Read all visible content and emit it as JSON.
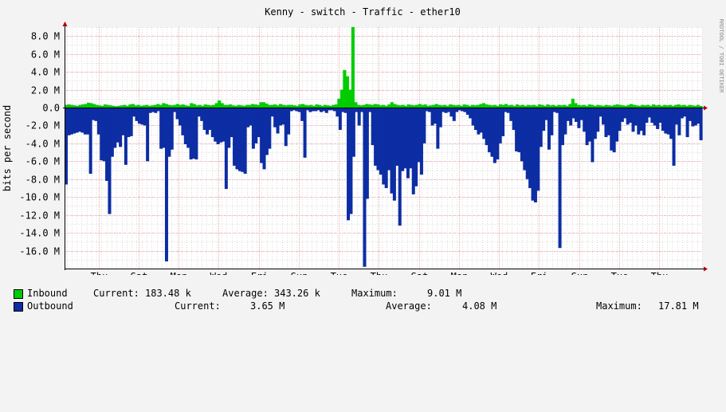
{
  "chart_data": {
    "type": "area",
    "title": "Kenny - switch - Traffic - ether10",
    "ylabel": "bits per second",
    "watermark": "RRDTOOL / TOBI OETIKER",
    "ylim": [
      -18000000,
      9000000
    ],
    "y_ticks": [
      {
        "value": 8000000,
        "label": "8.0 M"
      },
      {
        "value": 6000000,
        "label": "6.0 M"
      },
      {
        "value": 4000000,
        "label": "4.0 M"
      },
      {
        "value": 2000000,
        "label": "2.0 M"
      },
      {
        "value": 0,
        "label": "0.0"
      },
      {
        "value": -2000000,
        "label": "-2.0 M"
      },
      {
        "value": -4000000,
        "label": "-4.0 M"
      },
      {
        "value": -6000000,
        "label": "-6.0 M"
      },
      {
        "value": -8000000,
        "label": "-8.0 M"
      },
      {
        "value": -10000000,
        "label": "-10.0 M"
      },
      {
        "value": -12000000,
        "label": "-12.0 M"
      },
      {
        "value": -14000000,
        "label": "-14.0 M"
      },
      {
        "value": -16000000,
        "label": "-16.0 M"
      }
    ],
    "x_ticks": [
      "Thu",
      "Sat",
      "Mon",
      "Wed",
      "Fri",
      "Sun",
      "Tue",
      "Thu",
      "Sat",
      "Mon",
      "Wed",
      "Fri",
      "Sun",
      "Tue",
      "Thu"
    ],
    "x_days": 17.5,
    "x_tick_days": [
      0.85,
      2.85,
      4.85,
      6.85,
      8.85,
      10.85,
      12.85,
      14.85,
      16.85,
      18.85,
      20.85,
      22.85,
      24.85,
      26.85,
      28.85
    ],
    "x_range_days": [
      -0.85,
      31.0
    ],
    "grid": true,
    "legend_position": "bottom",
    "series": [
      {
        "name": "Inbound",
        "color": "#00cc00",
        "legend_label": "Inbound",
        "stats": {
          "current_label": "Current:",
          "current": "183.48 k",
          "average_label": "Average:",
          "average": "343.26 k",
          "maximum_label": "Maximum:",
          "maximum": "9.01 M"
        },
        "values": [
          0.3,
          0.35,
          0.3,
          0.25,
          0.2,
          0.3,
          0.35,
          0.4,
          0.55,
          0.5,
          0.4,
          0.3,
          0.25,
          0.2,
          0.35,
          0.3,
          0.25,
          0.2,
          0.15,
          0.2,
          0.25,
          0.3,
          0.2,
          0.35,
          0.4,
          0.25,
          0.3,
          0.2,
          0.25,
          0.3,
          0.2,
          0.25,
          0.3,
          0.4,
          0.3,
          0.5,
          0.4,
          0.3,
          0.25,
          0.3,
          0.4,
          0.3,
          0.35,
          0.25,
          0.2,
          0.5,
          0.4,
          0.25,
          0.3,
          0.2,
          0.35,
          0.3,
          0.25,
          0.3,
          0.5,
          0.8,
          0.5,
          0.3,
          0.3,
          0.35,
          0.25,
          0.2,
          0.3,
          0.25,
          0.2,
          0.3,
          0.3,
          0.4,
          0.35,
          0.3,
          0.6,
          0.6,
          0.45,
          0.3,
          0.3,
          0.35,
          0.25,
          0.4,
          0.3,
          0.25,
          0.3,
          0.3,
          0.25,
          0.2,
          0.35,
          0.4,
          0.3,
          0.25,
          0.3,
          0.2,
          0.35,
          0.3,
          0.2,
          0.3,
          0.25,
          0.2,
          0.3,
          0.35,
          1.0,
          2.0,
          4.2,
          3.5,
          2.0,
          9.01,
          0.6,
          0.3,
          0.25,
          0.3,
          0.4,
          0.35,
          0.3,
          0.4,
          0.35,
          0.25,
          0.3,
          0.2,
          0.35,
          0.6,
          0.4,
          0.3,
          0.25,
          0.3,
          0.2,
          0.35,
          0.3,
          0.25,
          0.3,
          0.4,
          0.3,
          0.35,
          0.2,
          0.25,
          0.3,
          0.4,
          0.3,
          0.25,
          0.3,
          0.2,
          0.35,
          0.3,
          0.25,
          0.3,
          0.2,
          0.35,
          0.3,
          0.2,
          0.3,
          0.25,
          0.3,
          0.4,
          0.5,
          0.35,
          0.3,
          0.25,
          0.3,
          0.2,
          0.35,
          0.3,
          0.4,
          0.25,
          0.3,
          0.2,
          0.35,
          0.25,
          0.3,
          0.2,
          0.3,
          0.25,
          0.3,
          0.2,
          0.35,
          0.3,
          0.2,
          0.35,
          0.25,
          0.3,
          0.2,
          0.3,
          0.25,
          0.3,
          0.2,
          0.4,
          1.0,
          0.5,
          0.3,
          0.25,
          0.3,
          0.2,
          0.35,
          0.3,
          0.2,
          0.3,
          0.25,
          0.2,
          0.3,
          0.25,
          0.2,
          0.3,
          0.35,
          0.3,
          0.25,
          0.2,
          0.3,
          0.4,
          0.3,
          0.25,
          0.2,
          0.3,
          0.25,
          0.3,
          0.2,
          0.35,
          0.25,
          0.3,
          0.2,
          0.3,
          0.25,
          0.3,
          0.2,
          0.3,
          0.35,
          0.25,
          0.3,
          0.2,
          0.3,
          0.25,
          0.2,
          0.3,
          0.18
        ]
      },
      {
        "name": "Outbound",
        "color": "#0c2da3",
        "legend_label": "Outbound",
        "stats": {
          "current_label": "Current:",
          "current": "3.65 M",
          "average_label": "Average:",
          "average": "4.08 M",
          "maximum_label": "Maximum:",
          "maximum": "17.81 M"
        },
        "values": [
          -8.6,
          -3.1,
          -3.0,
          -2.9,
          -2.8,
          -2.7,
          -2.8,
          -3.0,
          -3.0,
          -7.4,
          -1.4,
          -1.5,
          -3.0,
          -5.9,
          -6.0,
          -8.2,
          -11.9,
          -5.5,
          -4.5,
          -3.9,
          -4.4,
          -3.1,
          -6.4,
          -3.3,
          -3.2,
          -1.0,
          -1.5,
          -1.8,
          -1.9,
          -2.0,
          -6.0,
          -0.6,
          -0.5,
          -0.6,
          -0.4,
          -4.6,
          -4.5,
          -17.2,
          -5.5,
          -4.7,
          -0.5,
          -1.3,
          -2.0,
          -3.1,
          -4.1,
          -4.5,
          -5.8,
          -5.7,
          -5.8,
          -1.0,
          -1.5,
          -2.5,
          -3.0,
          -2.5,
          -3.3,
          -3.8,
          -4.1,
          -3.9,
          -3.8,
          -9.1,
          -4.5,
          -3.3,
          -6.5,
          -6.9,
          -7.1,
          -7.2,
          -7.4,
          -2.2,
          -2.0,
          -4.6,
          -4.0,
          -3.3,
          -6.2,
          -6.9,
          -5.3,
          -4.6,
          -1.0,
          -2.2,
          -2.9,
          -2.0,
          -1.9,
          -4.3,
          -3.0,
          -0.4,
          -0.3,
          -0.4,
          -0.5,
          -1.5,
          -5.6,
          -0.3,
          -0.5,
          -0.4,
          -0.4,
          -0.3,
          -0.5,
          -0.4,
          -0.6,
          -0.3,
          -0.3,
          -0.4,
          -1.0,
          -2.5,
          -0.5,
          -0.6,
          -12.6,
          -11.9,
          -5.5,
          -0.5,
          -2.0,
          -0.5,
          -17.8,
          -10.2,
          -0.5,
          -4.2,
          -6.5,
          -7.0,
          -7.5,
          -8.6,
          -9.0,
          -7.0,
          -9.6,
          -10.4,
          -6.5,
          -13.2,
          -7.1,
          -6.8,
          -7.9,
          -6.8,
          -9.7,
          -8.8,
          -6.1,
          -7.5,
          -4.0,
          -0.4,
          -0.5,
          -2.0,
          -1.8,
          -4.6,
          -2.2,
          -0.5,
          -0.6,
          -0.5,
          -1.0,
          -1.5,
          -0.5,
          -0.3,
          -0.4,
          -0.5,
          -0.8,
          -1.2,
          -2.0,
          -2.5,
          -3.0,
          -2.8,
          -3.5,
          -4.2,
          -5.0,
          -5.5,
          -6.2,
          -5.8,
          -4.0,
          -3.2,
          -0.5,
          -0.6,
          -1.5,
          -2.5,
          -4.9,
          -5.0,
          -6.0,
          -7.0,
          -8.0,
          -9.0,
          -10.4,
          -10.6,
          -9.3,
          -4.4,
          -2.6,
          -1.4,
          -4.7,
          -3.1,
          -0.5,
          -0.6,
          -15.7,
          -4.2,
          -3.0,
          -1.5,
          -2.0,
          -1.2,
          -1.6,
          -2.3,
          -1.4,
          -2.7,
          -4.2,
          -3.8,
          -6.1,
          -3.5,
          -2.7,
          -1.0,
          -1.9,
          -3.3,
          -3.1,
          -4.8,
          -5.0,
          -3.8,
          -2.6,
          -1.6,
          -1.2,
          -1.9,
          -1.7,
          -2.7,
          -2.0,
          -3.0,
          -2.6,
          -3.1,
          -1.7,
          -1.1,
          -1.7,
          -2.0,
          -2.4,
          -1.7,
          -2.6,
          -2.9,
          -3.0,
          -3.5,
          -6.5,
          -1.9,
          -3.1,
          -1.2,
          -1.0,
          -3.3,
          -1.5,
          -2.1,
          -2.0,
          -1.8,
          -3.65
        ]
      }
    ]
  }
}
